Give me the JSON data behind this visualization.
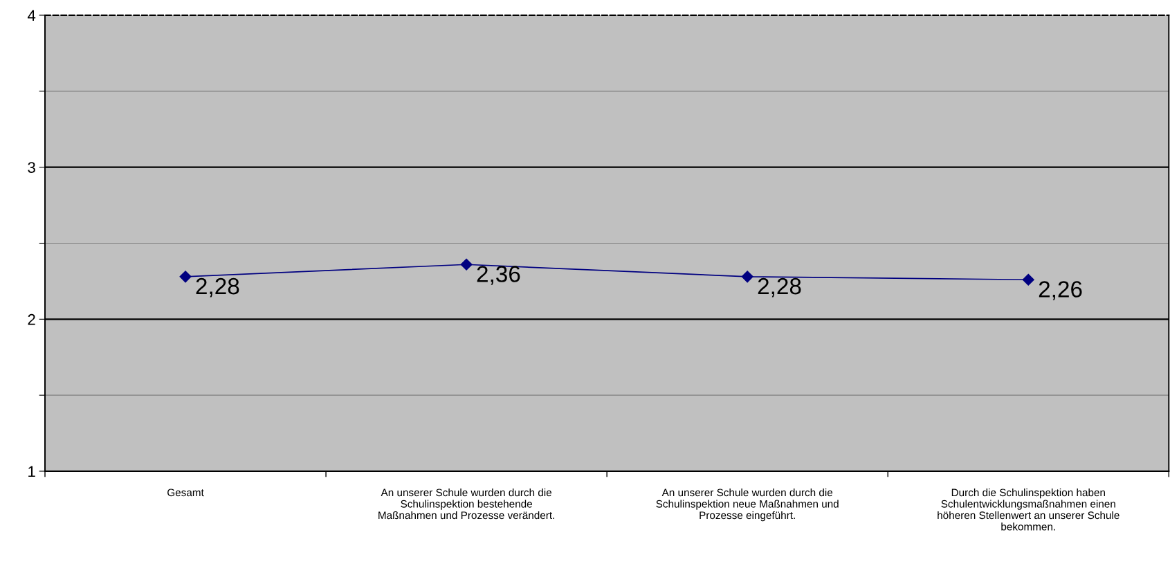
{
  "chart_data": {
    "type": "line",
    "categories": [
      "Gesamt",
      "An unserer Schule wurden durch die\nSchulinspektion bestehende\nMaßnahmen und Prozesse verändert.",
      "An unserer Schule wurden durch die\nSchulinspektion neue Maßnahmen und\nProzesse eingeführt.",
      "Durch die Schulinspektion haben\nSchulentwicklungsmaßnahmen einen\nhöheren Stellenwert an unserer Schule\nbekommen."
    ],
    "series": [
      {
        "color": "#000080",
        "values": [
          2.28,
          2.36,
          2.28,
          2.26
        ],
        "value_labels": [
          "2,28",
          "2,36",
          "2,28",
          "2,26"
        ]
      }
    ],
    "ylim": [
      1,
      4
    ],
    "yticks": [
      1,
      {
        "value": 1.5,
        "label": null
      },
      2,
      {
        "value": 2.5,
        "label": null
      },
      3,
      {
        "value": 3.5,
        "label": null
      },
      4
    ],
    "grid": "y",
    "marker": "diamond",
    "line_style": "solid",
    "legend": false
  }
}
